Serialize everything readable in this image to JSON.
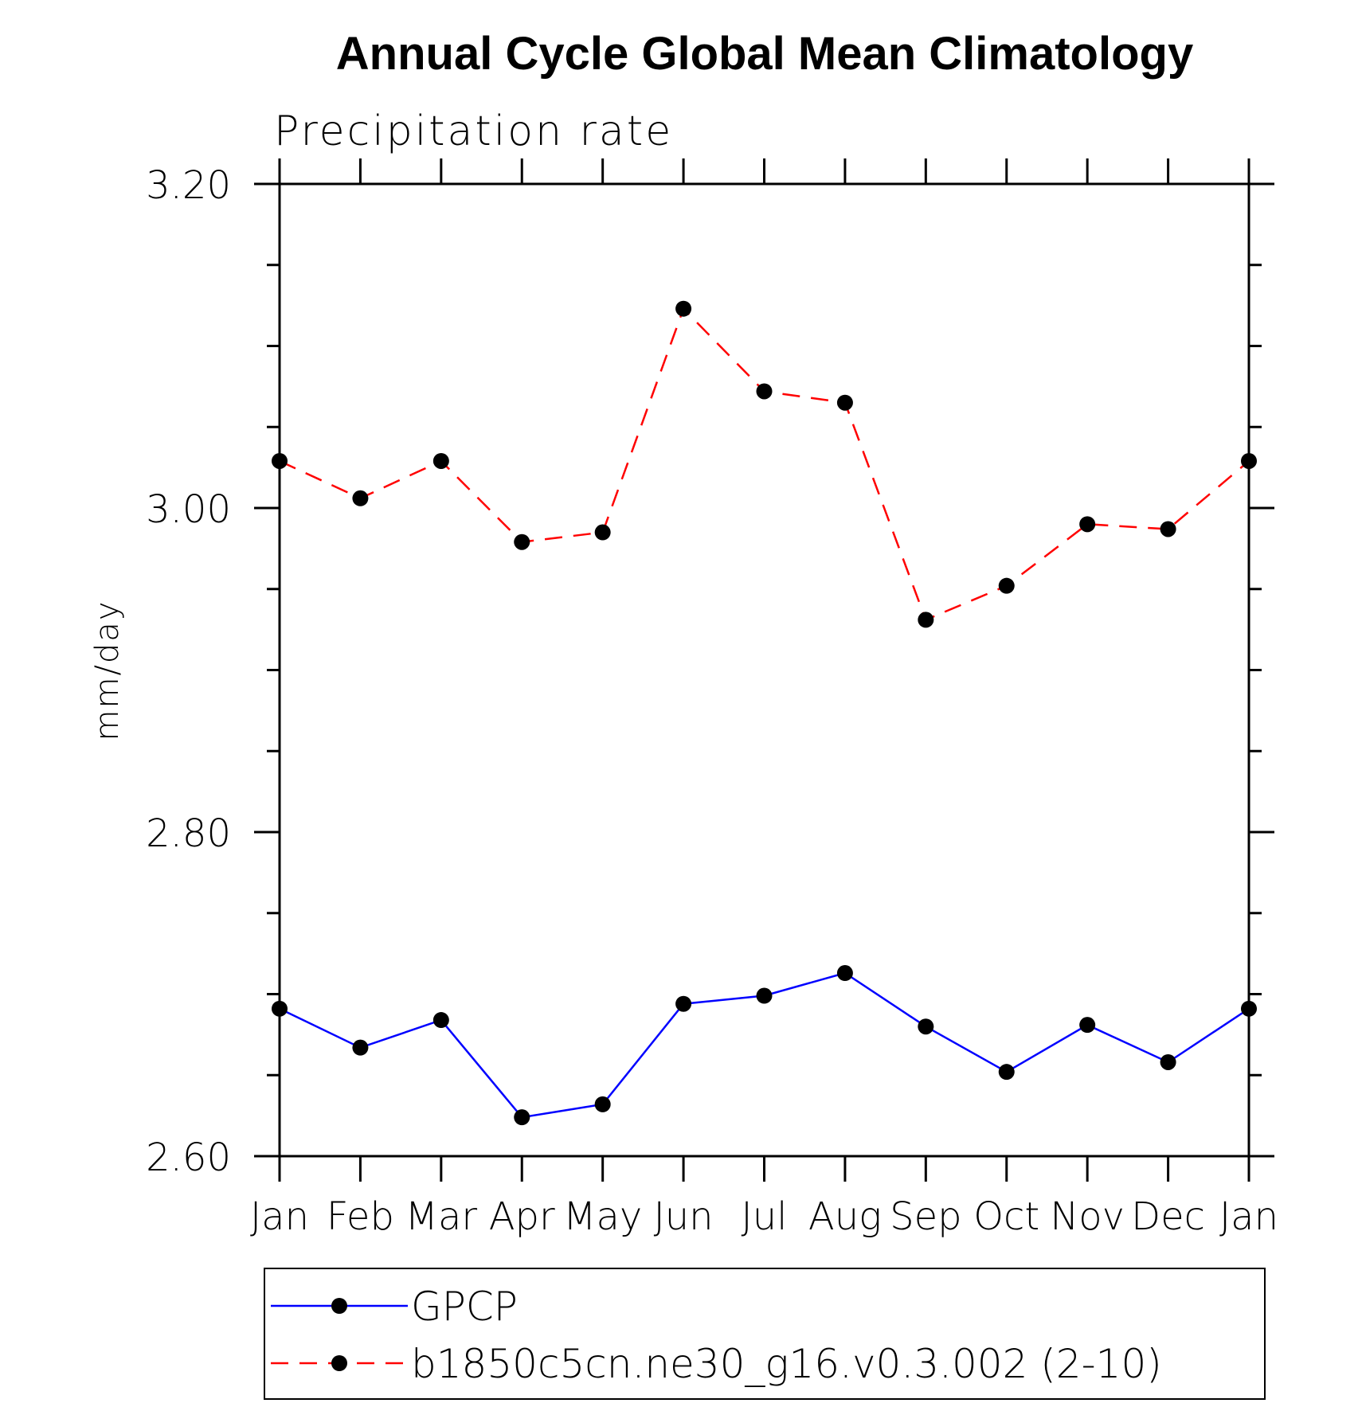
{
  "chart_data": {
    "type": "line",
    "title": "Annual Cycle Global Mean Climatology",
    "subtitle": "Precipitation rate",
    "xlabel": "",
    "ylabel": "mm/day",
    "categories": [
      "Jan",
      "Feb",
      "Mar",
      "Apr",
      "May",
      "Jun",
      "Jul",
      "Aug",
      "Sep",
      "Oct",
      "Nov",
      "Dec",
      "Jan"
    ],
    "ylim": [
      2.6,
      3.2
    ],
    "yticks": [
      2.6,
      2.8,
      3.0,
      3.2
    ],
    "ytick_labels": [
      "2.60",
      "2.80",
      "3.00",
      "3.20"
    ],
    "yminor_step": 0.05,
    "grid": false,
    "legend_position": "bottom",
    "series": [
      {
        "name": "GPCP",
        "color": "#0000ff",
        "line_style": "solid",
        "marker": "filled-circle",
        "values": [
          2.691,
          2.667,
          2.684,
          2.624,
          2.632,
          2.694,
          2.699,
          2.713,
          2.68,
          2.652,
          2.681,
          2.658,
          2.691
        ]
      },
      {
        "name": "b1850c5cn.ne30_g16.v0.3.002 (2-10)",
        "color": "#ff0000",
        "line_style": "dashed",
        "marker": "filled-circle",
        "values": [
          3.029,
          3.006,
          3.029,
          2.979,
          2.985,
          3.123,
          3.072,
          3.065,
          2.931,
          2.952,
          2.99,
          2.987,
          3.029
        ]
      }
    ]
  }
}
